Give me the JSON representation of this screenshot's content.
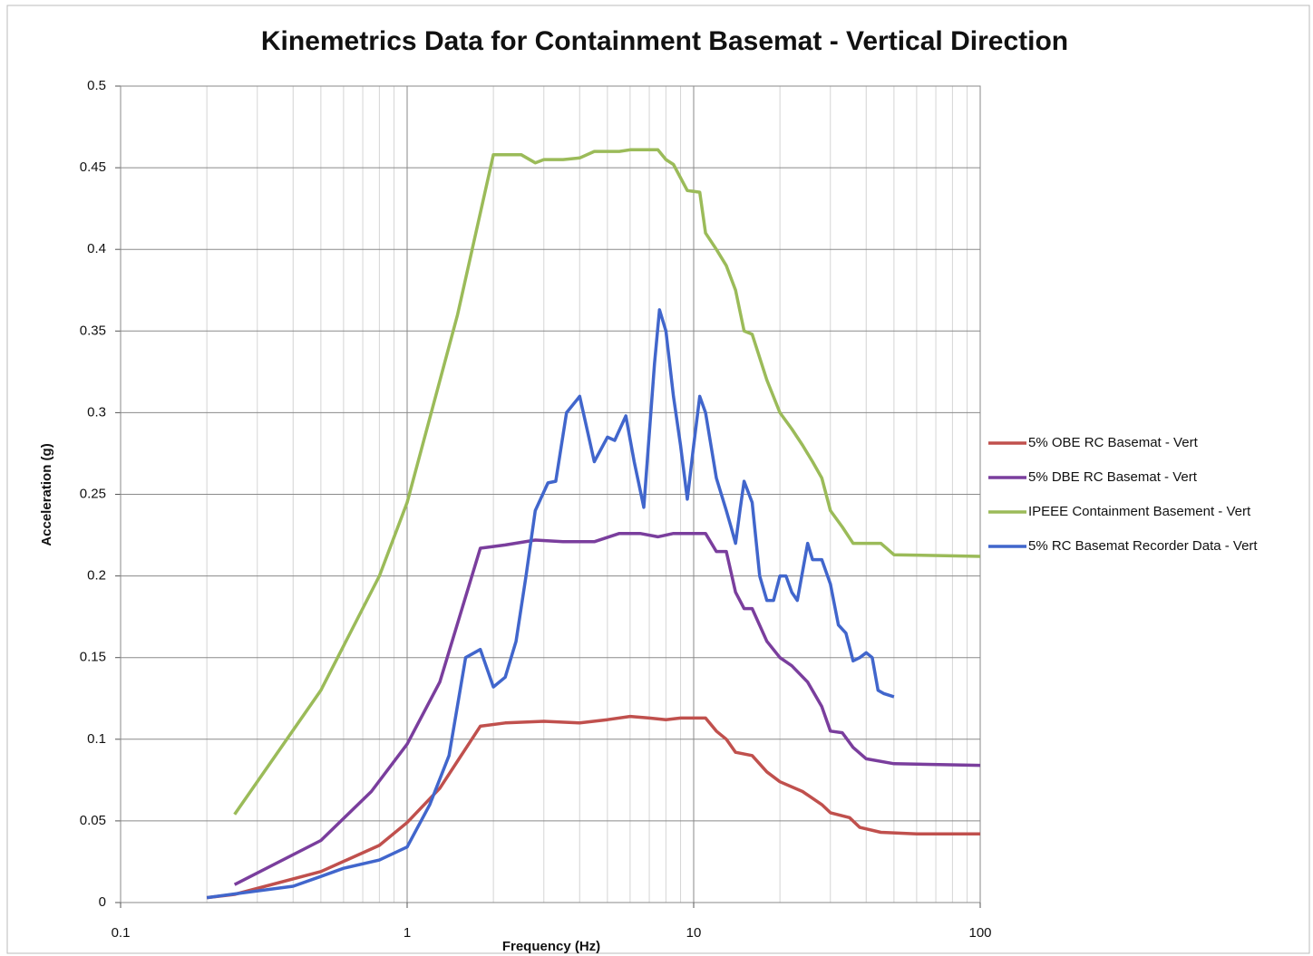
{
  "chart_data": {
    "type": "line",
    "title": "Kinemetrics Data for Containment Basemat - Vertical Direction",
    "x_label": "Frequency (Hz)",
    "y_label": "Acceleration (g)",
    "x_scale": "log",
    "xlim": [
      0.1,
      100
    ],
    "xticks": [
      0.1,
      1,
      10,
      100
    ],
    "ylim": [
      0,
      0.5
    ],
    "yticks": [
      0,
      0.05,
      0.1,
      0.15,
      0.2,
      0.25,
      0.3,
      0.35,
      0.4,
      0.45,
      0.5
    ],
    "grid": true,
    "legend": "right",
    "series": [
      {
        "name": "5% OBE RC Basemat - Vert",
        "color": "#c0504d",
        "x": [
          0.2,
          0.25,
          0.5,
          0.8,
          1,
          1.3,
          1.8,
          2.2,
          3,
          4,
          5,
          6,
          7,
          8,
          9,
          11,
          12,
          13,
          14,
          16,
          18,
          20,
          24,
          28,
          30,
          35,
          38,
          45,
          60,
          100
        ],
        "values": [
          0.003,
          0.005,
          0.019,
          0.035,
          0.049,
          0.07,
          0.108,
          0.11,
          0.111,
          0.11,
          0.112,
          0.114,
          0.113,
          0.112,
          0.113,
          0.113,
          0.105,
          0.1,
          0.092,
          0.09,
          0.08,
          0.074,
          0.068,
          0.06,
          0.055,
          0.052,
          0.046,
          0.043,
          0.042,
          0.042
        ]
      },
      {
        "name": "5% DBE RC Basemat - Vert",
        "color": "#7a3e9d",
        "x": [
          0.25,
          0.5,
          0.75,
          1,
          1.3,
          1.8,
          2.2,
          2.8,
          3.5,
          4.5,
          5.5,
          6.5,
          7.5,
          8.5,
          11,
          12,
          13,
          14,
          15,
          16,
          18,
          20,
          22,
          25,
          28,
          30,
          33,
          36,
          40,
          50,
          100
        ],
        "values": [
          0.011,
          0.038,
          0.068,
          0.097,
          0.135,
          0.217,
          0.219,
          0.222,
          0.221,
          0.221,
          0.226,
          0.226,
          0.224,
          0.226,
          0.226,
          0.215,
          0.215,
          0.19,
          0.18,
          0.18,
          0.16,
          0.15,
          0.145,
          0.135,
          0.12,
          0.105,
          0.104,
          0.095,
          0.088,
          0.085,
          0.084
        ]
      },
      {
        "name": "IPEEE Containment Basement - Vert",
        "color": "#9bbb59",
        "x": [
          0.25,
          0.5,
          0.8,
          1,
          1.5,
          2,
          2.5,
          2.8,
          3,
          3.5,
          4,
          4.5,
          5.5,
          6,
          7.5,
          8,
          8.5,
          9.5,
          10.5,
          11,
          12,
          13,
          14,
          15,
          16,
          18,
          20,
          22,
          24,
          26,
          28,
          30,
          33,
          36,
          45,
          50,
          100
        ],
        "values": [
          0.054,
          0.13,
          0.2,
          0.245,
          0.36,
          0.458,
          0.458,
          0.453,
          0.455,
          0.455,
          0.456,
          0.46,
          0.46,
          0.461,
          0.461,
          0.455,
          0.452,
          0.436,
          0.435,
          0.41,
          0.4,
          0.39,
          0.375,
          0.35,
          0.348,
          0.32,
          0.3,
          0.29,
          0.28,
          0.27,
          0.26,
          0.24,
          0.23,
          0.22,
          0.22,
          0.213,
          0.212
        ]
      },
      {
        "name": "5% RC Basemat Recorder Data - Vert",
        "color": "#4166cc",
        "x": [
          0.2,
          0.4,
          0.5,
          0.6,
          0.8,
          1,
          1.2,
          1.4,
          1.6,
          1.8,
          2,
          2.2,
          2.4,
          2.6,
          2.8,
          3.1,
          3.3,
          3.6,
          4,
          4.5,
          5,
          5.3,
          5.8,
          6.2,
          6.7,
          7.3,
          7.6,
          8,
          8.5,
          9,
          9.5,
          10,
          10.5,
          11,
          12,
          13,
          13.5,
          14,
          14.5,
          15,
          16,
          17,
          18,
          19,
          20,
          21,
          22,
          23,
          25,
          26,
          28,
          30,
          32,
          34,
          36,
          38,
          40,
          42,
          44,
          46,
          50
        ],
        "values": [
          0.003,
          0.01,
          0.016,
          0.021,
          0.026,
          0.034,
          0.06,
          0.09,
          0.15,
          0.155,
          0.132,
          0.138,
          0.16,
          0.2,
          0.24,
          0.257,
          0.258,
          0.3,
          0.31,
          0.27,
          0.285,
          0.283,
          0.298,
          0.27,
          0.242,
          0.33,
          0.363,
          0.35,
          0.31,
          0.28,
          0.247,
          0.28,
          0.31,
          0.3,
          0.26,
          0.24,
          0.23,
          0.22,
          0.24,
          0.258,
          0.245,
          0.2,
          0.185,
          0.185,
          0.2,
          0.2,
          0.19,
          0.185,
          0.22,
          0.21,
          0.21,
          0.195,
          0.17,
          0.165,
          0.148,
          0.15,
          0.153,
          0.15,
          0.13,
          0.128,
          0.126
        ]
      }
    ]
  }
}
